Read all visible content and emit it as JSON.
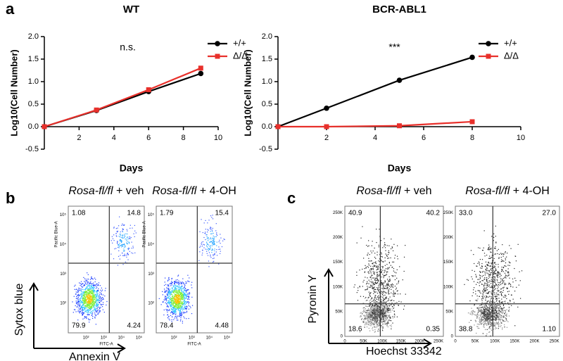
{
  "chart_data": [
    {
      "type": "line",
      "panel": "a",
      "title": "WT",
      "annotation": "n.s.",
      "xlabel": "Days",
      "ylabel": "Log10(Cell Number)",
      "x": [
        0,
        3,
        6,
        9
      ],
      "xlim": [
        0,
        10
      ],
      "xticks": [
        2,
        4,
        6,
        8,
        10
      ],
      "ylim": [
        -0.5,
        2.0
      ],
      "yticks": [
        -0.5,
        {
          "value": 0,
          "label": "0.0"
        },
        0.5,
        {
          "value": 1,
          "label": "1.0"
        },
        1.5,
        {
          "value": 2,
          "label": "2.0"
        }
      ],
      "series": [
        {
          "name": "+/+",
          "color": "#000000",
          "marker": "circle",
          "values": [
            0,
            0.36,
            0.78,
            1.18
          ]
        },
        {
          "name": "Δ/Δ",
          "color": "#e8302b",
          "marker": "square",
          "values": [
            0,
            0.37,
            0.82,
            1.3
          ]
        }
      ]
    },
    {
      "type": "line",
      "title": "BCR-ABL1",
      "annotation": "***",
      "xlabel": "Days",
      "ylabel": "Log10(Cell Number)",
      "x": [
        0,
        2,
        5,
        8
      ],
      "xlim": [
        0,
        10
      ],
      "xticks": [
        2,
        4,
        6,
        8,
        10
      ],
      "ylim": [
        -0.5,
        2.0
      ],
      "yticks": [
        -0.5,
        {
          "value": 0,
          "label": "0.0"
        },
        0.5,
        {
          "value": 1,
          "label": "1.0"
        },
        1.5,
        {
          "value": 2,
          "label": "2.0"
        }
      ],
      "series": [
        {
          "name": "+/+",
          "color": "#000000",
          "marker": "circle",
          "values": [
            0,
            0.41,
            1.03,
            1.54
          ]
        },
        {
          "name": "Δ/Δ",
          "color": "#e8302b",
          "marker": "square",
          "values": [
            0,
            0,
            0.02,
            0.11
          ]
        }
      ]
    }
  ],
  "flow_panels": [
    {
      "panel": "b",
      "ylabel": "Sytox blue",
      "xlabel": "Annexin V",
      "plot_xlabel": "FITC-A",
      "plot_ylabel": "Pacific Blue-A",
      "xticks": [
        "10²",
        "10³",
        "10⁴",
        "10⁵"
      ],
      "yticks": [
        "10²",
        "10³",
        "10⁴",
        "10⁵"
      ],
      "plots": [
        {
          "title_italic": "Rosa-fl/fl",
          "title_rest": "+ veh",
          "quadrants": [
            "1.08",
            "14.8",
            "79.9",
            "4.24"
          ]
        },
        {
          "title_italic": "Rosa-fl/fl",
          "title_rest": "+ 4-OH",
          "quadrants": [
            "1.79",
            "15.4",
            "78.4",
            "4.48"
          ]
        }
      ]
    },
    {
      "panel": "c",
      "ylabel": "Pyronin Y",
      "xlabel": "Hoechst 33342",
      "xticks": [
        "0",
        "50K",
        "100K",
        "150K",
        "200K",
        "250K"
      ],
      "yticks": [
        "0",
        "50K",
        "100K",
        "150K",
        "200K",
        "250K"
      ],
      "plots": [
        {
          "title_italic": "Rosa-fl/fl",
          "title_rest": "+ veh",
          "quadrants": [
            "40.9",
            "40.2",
            "18.6",
            "0.35"
          ]
        },
        {
          "title_italic": "Rosa-fl/fl",
          "title_rest": "+ 4-OH",
          "quadrants": [
            "33.0",
            "27.0",
            "38.8",
            "1.10"
          ]
        }
      ]
    }
  ]
}
